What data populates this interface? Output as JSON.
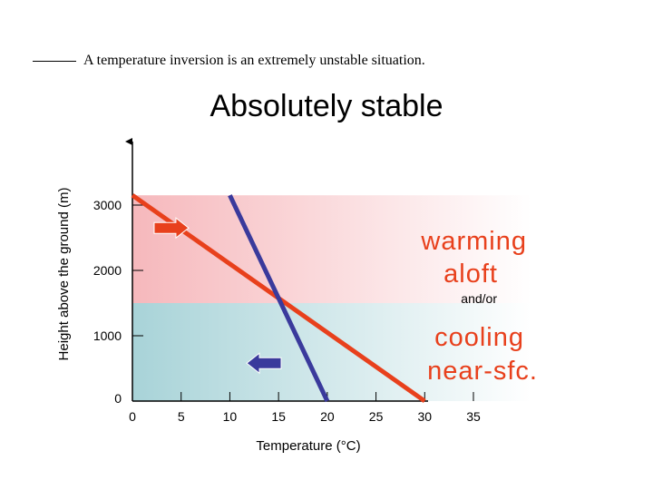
{
  "question": {
    "blank": "_____",
    "text": "A temperature inversion is an extremely unstable situation."
  },
  "chart_data": {
    "type": "line",
    "title": "Absolutely stable",
    "xlabel": "Temperature (°C)",
    "ylabel": "Height above the ground (m)",
    "xlim": [
      0,
      35
    ],
    "ylim": [
      0,
      4000
    ],
    "x_ticks": [
      0,
      5,
      10,
      15,
      20,
      25,
      30,
      35
    ],
    "y_ticks": [
      0,
      1000,
      2000,
      3000
    ],
    "y_tick_labels": [
      "0",
      "1000",
      "2000",
      "3000"
    ],
    "series": [
      {
        "color": "#e8401c",
        "points": [
          [
            0,
            3150
          ],
          [
            30,
            0
          ]
        ]
      },
      {
        "color": "#3a3a9c",
        "points": [
          [
            10,
            3150
          ],
          [
            20,
            0
          ]
        ]
      }
    ],
    "bands": [
      {
        "from": 1500,
        "to": 3150,
        "color": "#f9c9cc"
      },
      {
        "from": 0,
        "to": 1500,
        "color": "#b2d9dc"
      }
    ],
    "annotations": {
      "warming": [
        "warming",
        "aloft"
      ],
      "andor": "and/or",
      "cooling": [
        "cooling",
        "near-sfc."
      ],
      "text_color": "#e8401c",
      "andor_color": "#000000"
    },
    "arrows": [
      {
        "direction": "right",
        "color": "#e8401c",
        "at": [
          4,
          2650
        ]
      },
      {
        "direction": "left",
        "color": "#3a3a9c",
        "at": [
          13.5,
          580
        ]
      }
    ],
    "grid": false
  }
}
